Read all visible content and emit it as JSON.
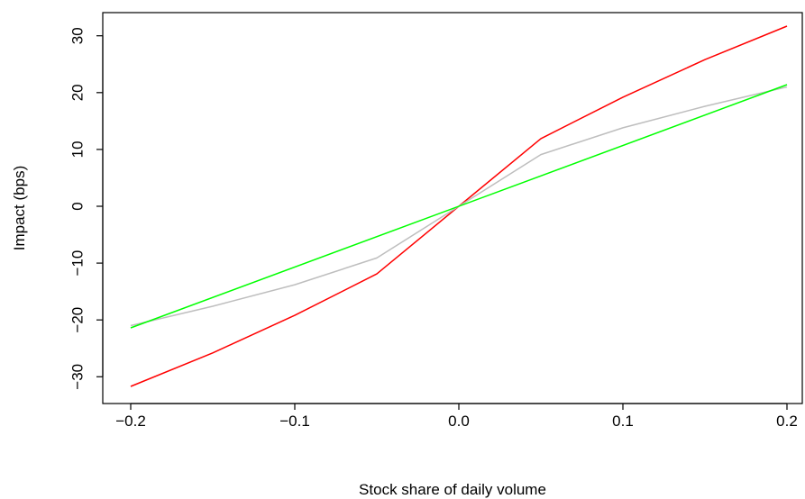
{
  "chart_data": {
    "type": "line",
    "title": "",
    "xlabel": "Stock share of daily volume",
    "ylabel": "Impact (bps)",
    "xlim": [
      -0.2,
      0.2
    ],
    "ylim": [
      -31.7,
      31.7
    ],
    "grid": false,
    "legend": "none",
    "x_ticks": [
      -0.2,
      -0.1,
      0.0,
      0.1,
      0.2
    ],
    "x_tick_labels": [
      "−0.2",
      "−0.1",
      "0.0",
      "0.1",
      "0.2"
    ],
    "y_ticks": [
      -30,
      -20,
      -10,
      0,
      10,
      20,
      30
    ],
    "y_tick_labels": [
      "−30",
      "−20",
      "−10",
      "0",
      "10",
      "20",
      "30"
    ],
    "series": [
      {
        "color": "#ff0000",
        "x": [
          -0.2,
          -0.15,
          -0.1,
          -0.05,
          0.0,
          0.05,
          0.1,
          0.15,
          0.2
        ],
        "values": [
          -31.7,
          -25.8,
          -19.2,
          -11.9,
          0.0,
          11.9,
          19.2,
          25.8,
          31.7
        ]
      },
      {
        "color": "#bebebe",
        "x": [
          -0.2,
          -0.15,
          -0.1,
          -0.05,
          0.0,
          0.05,
          0.1,
          0.15,
          0.2
        ],
        "values": [
          -21.0,
          -17.6,
          -13.8,
          -9.1,
          0.0,
          9.1,
          13.8,
          17.6,
          21.0
        ]
      },
      {
        "color": "#00ff00",
        "x": [
          -0.2,
          0.2
        ],
        "values": [
          -21.4,
          21.4
        ]
      }
    ]
  }
}
